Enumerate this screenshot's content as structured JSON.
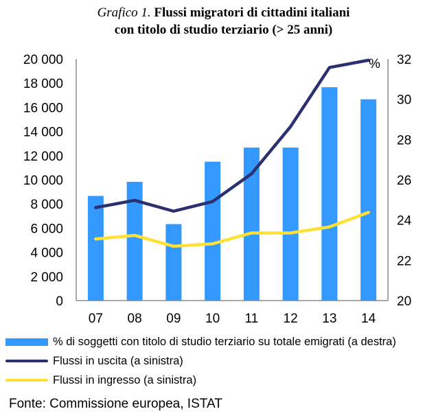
{
  "title": {
    "prefix": "Grafico 1.",
    "line1": "Flussi migratori di cittadini italiani",
    "line2": "con titolo di studio terziario (> 25 anni)"
  },
  "chart_data": {
    "type": "bar",
    "categories": [
      "07",
      "08",
      "09",
      "10",
      "11",
      "12",
      "13",
      "14"
    ],
    "y_left": {
      "min": 0,
      "max": 20000,
      "ticks": [
        "0",
        "2 000",
        "4 000",
        "6 000",
        "8 000",
        "10 000",
        "12 000",
        "14 000",
        "16 000",
        "18 000",
        "20 000"
      ]
    },
    "y_right": {
      "min": 20,
      "max": 32,
      "unit": "%",
      "ticks": [
        "20",
        "22",
        "24",
        "26",
        "28",
        "30",
        "32"
      ]
    },
    "series": [
      {
        "name": "% di soggetti con titolo di studio terziario su totale emigrati (a destra)",
        "type": "bar",
        "axis": "right",
        "color": "#3399ff",
        "values": [
          25.2,
          25.9,
          23.8,
          26.9,
          27.6,
          27.6,
          30.6,
          30.0
        ]
      },
      {
        "name": "Flussi in uscita (a sinistra)",
        "type": "line",
        "axis": "left",
        "color": "#2b3170",
        "values": [
          7700,
          8300,
          7400,
          8200,
          10500,
          14400,
          19300,
          19900
        ]
      },
      {
        "name": "Flussi in ingresso (a sinistra)",
        "type": "line",
        "axis": "left",
        "color": "#ffe034",
        "values": [
          5100,
          5400,
          4500,
          4700,
          5600,
          5600,
          6100,
          7300
        ]
      }
    ]
  },
  "source": "Fonte: Commissione europea, ISTAT"
}
